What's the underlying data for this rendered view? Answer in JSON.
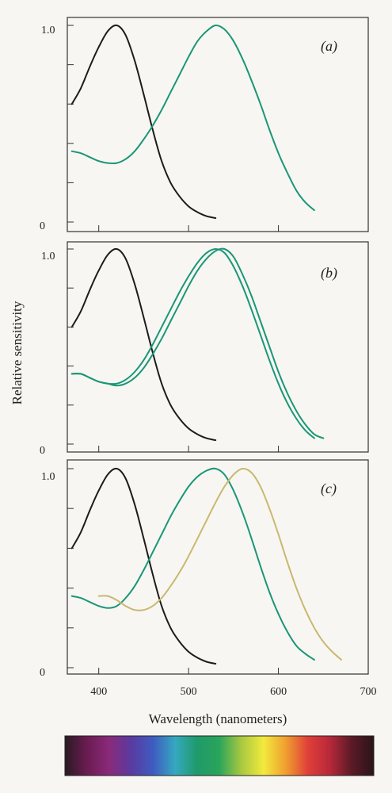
{
  "colors": {
    "black_curve": "#1c1c1c",
    "green_curve": "#1a9678",
    "yellow_curve": "#c9b870"
  },
  "spectrum_bar": {
    "stops": [
      "#2a1a22",
      "#6a1c52",
      "#8a2a7a",
      "#5a3aa0",
      "#3f5cc0",
      "#35a8c0",
      "#1f9a6a",
      "#2aa55a",
      "#a8c840",
      "#f2ea3c",
      "#f0a030",
      "#e04038",
      "#b8283a",
      "#5a1a26",
      "#2a141a"
    ]
  },
  "chart_data": [
    {
      "type": "line",
      "panel_label": "(a)",
      "xlim": [
        365,
        700
      ],
      "ylim": [
        0,
        1.0
      ],
      "y_tick_labels": [
        "0",
        "1.0"
      ],
      "series": [
        {
          "color_key": "black_curve",
          "x": [
            370,
            380,
            390,
            400,
            410,
            420,
            430,
            440,
            450,
            460,
            470,
            480,
            490,
            500,
            510,
            520,
            530
          ],
          "y": [
            0.6,
            0.68,
            0.79,
            0.89,
            0.97,
            1.0,
            0.95,
            0.82,
            0.65,
            0.47,
            0.31,
            0.2,
            0.13,
            0.08,
            0.05,
            0.03,
            0.02
          ]
        },
        {
          "color_key": "green_curve",
          "x": [
            370,
            380,
            390,
            400,
            410,
            420,
            430,
            440,
            450,
            460,
            470,
            480,
            490,
            500,
            510,
            520,
            530,
            540,
            550,
            560,
            570,
            580,
            590,
            600,
            610,
            620,
            630,
            640
          ],
          "y": [
            0.36,
            0.35,
            0.33,
            0.31,
            0.3,
            0.3,
            0.32,
            0.36,
            0.42,
            0.49,
            0.57,
            0.66,
            0.75,
            0.84,
            0.92,
            0.97,
            1.0,
            0.98,
            0.92,
            0.83,
            0.72,
            0.6,
            0.47,
            0.35,
            0.25,
            0.16,
            0.1,
            0.06
          ]
        }
      ]
    },
    {
      "type": "line",
      "panel_label": "(b)",
      "xlim": [
        365,
        700
      ],
      "ylim": [
        0,
        1.0
      ],
      "y_tick_labels": [
        "0",
        "1.0"
      ],
      "series": [
        {
          "color_key": "black_curve",
          "x": [
            370,
            380,
            390,
            400,
            410,
            420,
            430,
            440,
            450,
            460,
            470,
            480,
            490,
            500,
            510,
            520,
            530
          ],
          "y": [
            0.6,
            0.68,
            0.79,
            0.89,
            0.97,
            1.0,
            0.95,
            0.82,
            0.65,
            0.47,
            0.31,
            0.2,
            0.13,
            0.08,
            0.05,
            0.03,
            0.02
          ]
        },
        {
          "color_key": "green_curve",
          "x": [
            370,
            380,
            390,
            400,
            410,
            420,
            430,
            440,
            450,
            460,
            470,
            480,
            490,
            500,
            510,
            520,
            530,
            540,
            550,
            560,
            570,
            580,
            590,
            600,
            610,
            620,
            630,
            640
          ],
          "y": [
            0.36,
            0.36,
            0.34,
            0.32,
            0.31,
            0.31,
            0.33,
            0.37,
            0.43,
            0.51,
            0.6,
            0.69,
            0.78,
            0.86,
            0.93,
            0.98,
            1.0,
            0.98,
            0.91,
            0.81,
            0.69,
            0.56,
            0.43,
            0.31,
            0.21,
            0.13,
            0.07,
            0.03
          ]
        },
        {
          "color_key": "green_curve",
          "x": [
            370,
            380,
            390,
            400,
            410,
            420,
            430,
            440,
            450,
            460,
            470,
            480,
            490,
            500,
            510,
            520,
            530,
            540,
            550,
            560,
            570,
            580,
            590,
            600,
            610,
            620,
            630,
            640,
            650
          ],
          "y": [
            0.36,
            0.36,
            0.34,
            0.32,
            0.31,
            0.3,
            0.31,
            0.34,
            0.39,
            0.46,
            0.54,
            0.63,
            0.72,
            0.81,
            0.89,
            0.95,
            0.99,
            1.0,
            0.96,
            0.87,
            0.76,
            0.63,
            0.5,
            0.37,
            0.26,
            0.17,
            0.1,
            0.05,
            0.03
          ]
        }
      ]
    },
    {
      "type": "line",
      "panel_label": "(c)",
      "xlim": [
        365,
        700
      ],
      "ylim": [
        0,
        1.0
      ],
      "y_tick_labels": [
        "0",
        "1.0"
      ],
      "x_tick_labels": [
        "400",
        "500",
        "600",
        "700"
      ],
      "x_tick_values": [
        400,
        500,
        600,
        700
      ],
      "series": [
        {
          "color_key": "black_curve",
          "x": [
            370,
            380,
            390,
            400,
            410,
            420,
            430,
            440,
            450,
            460,
            470,
            480,
            490,
            500,
            510,
            520,
            530
          ],
          "y": [
            0.6,
            0.68,
            0.79,
            0.89,
            0.97,
            1.0,
            0.95,
            0.82,
            0.65,
            0.47,
            0.31,
            0.2,
            0.13,
            0.08,
            0.05,
            0.03,
            0.02
          ]
        },
        {
          "color_key": "green_curve",
          "x": [
            370,
            380,
            390,
            400,
            410,
            420,
            430,
            440,
            450,
            460,
            470,
            480,
            490,
            500,
            510,
            520,
            530,
            540,
            550,
            560,
            570,
            580,
            590,
            600,
            610,
            620,
            630,
            640
          ],
          "y": [
            0.36,
            0.35,
            0.33,
            0.31,
            0.3,
            0.31,
            0.35,
            0.41,
            0.49,
            0.58,
            0.67,
            0.76,
            0.84,
            0.91,
            0.96,
            0.99,
            1.0,
            0.97,
            0.89,
            0.78,
            0.65,
            0.51,
            0.38,
            0.27,
            0.18,
            0.11,
            0.07,
            0.04
          ]
        },
        {
          "color_key": "yellow_curve",
          "x": [
            400,
            410,
            420,
            430,
            440,
            450,
            460,
            470,
            480,
            490,
            500,
            510,
            520,
            530,
            540,
            550,
            560,
            570,
            580,
            590,
            600,
            610,
            620,
            630,
            640,
            650,
            660,
            670
          ],
          "y": [
            0.36,
            0.36,
            0.34,
            0.31,
            0.29,
            0.29,
            0.31,
            0.35,
            0.41,
            0.48,
            0.56,
            0.65,
            0.74,
            0.83,
            0.91,
            0.97,
            1.0,
            0.98,
            0.91,
            0.8,
            0.67,
            0.53,
            0.4,
            0.29,
            0.2,
            0.13,
            0.08,
            0.04
          ]
        }
      ]
    }
  ],
  "axes": {
    "ylabel": "Relative sensitivity",
    "xlabel": "Wavelength (nanometers)"
  }
}
